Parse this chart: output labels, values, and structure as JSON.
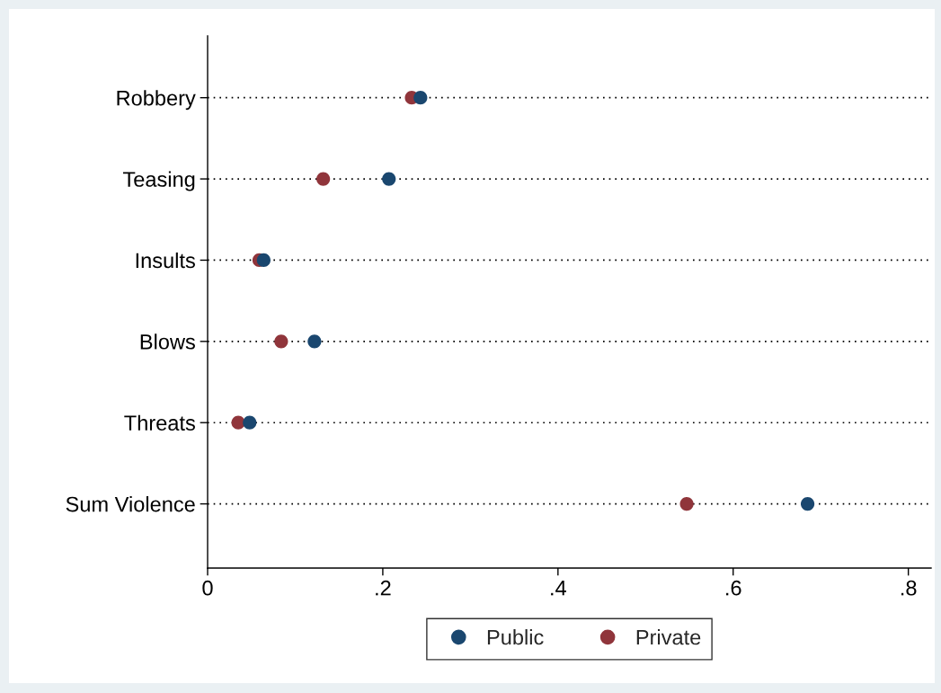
{
  "chart_data": {
    "type": "scatter",
    "orientation": "horizontal",
    "categories": [
      "Robbery",
      "Teasing",
      "Insults",
      "Blows",
      "Threats",
      "Sum Violence"
    ],
    "series": [
      {
        "name": "Public",
        "color": "#1a476f",
        "values": [
          0.243,
          0.207,
          0.064,
          0.122,
          0.048,
          0.685
        ]
      },
      {
        "name": "Private",
        "color": "#90353b",
        "values": [
          0.233,
          0.132,
          0.059,
          0.084,
          0.035,
          0.547
        ]
      }
    ],
    "xlim": [
      0,
      0.826
    ],
    "xticks": [
      0,
      {
        "value": 0.2,
        "label": ".2"
      },
      {
        "value": 0.4,
        "label": ".4"
      },
      {
        "value": 0.6,
        "label": ".6"
      },
      {
        "value": 0.8,
        "label": ".8"
      }
    ],
    "grid": "y",
    "legend": "bottom",
    "marker": "circle"
  }
}
